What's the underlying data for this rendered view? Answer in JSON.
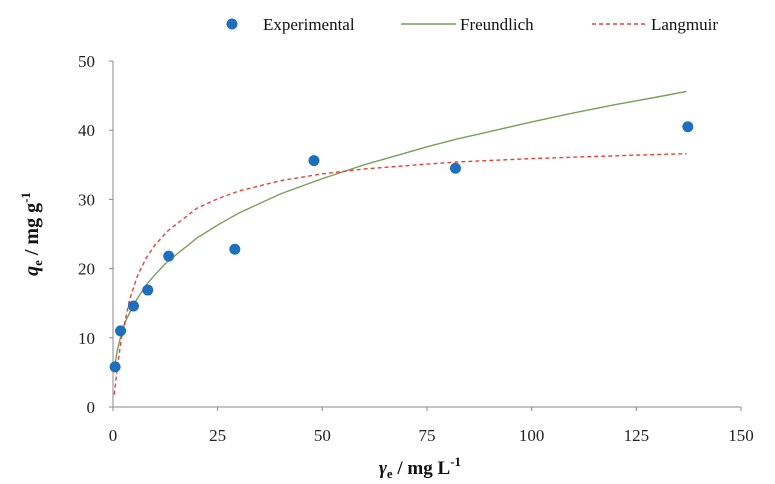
{
  "chart_data": {
    "type": "scatter",
    "title": "",
    "xlabel": {
      "symbol": "γ",
      "sub": "e",
      "rest": " / mg L",
      "sup": "-1"
    },
    "ylabel": {
      "symbol": "q",
      "sub": "e",
      "rest": " / mg g",
      "sup": "-1"
    },
    "xlim": [
      0,
      150
    ],
    "ylim": [
      0,
      50
    ],
    "xticks": [
      "0",
      "25",
      "50",
      "75",
      "100",
      "125",
      "150"
    ],
    "yticks": [
      "0",
      "10",
      "20",
      "30",
      "40",
      "50"
    ],
    "grid": false,
    "legend_position": "top",
    "series": [
      {
        "name": "Experimental",
        "kind": "points",
        "color": "#1f6fbf",
        "x": [
          0.5,
          1.8,
          4.9,
          8.3,
          13.3,
          29.1,
          48.0,
          81.8,
          137.3
        ],
        "y": [
          5.8,
          11.0,
          14.6,
          16.9,
          21.8,
          22.8,
          35.6,
          34.5,
          40.5
        ]
      },
      {
        "name": "Freundlich",
        "kind": "line",
        "color": "#77a05a",
        "dash": "",
        "x": [
          0.5,
          1,
          2,
          3,
          5,
          8,
          10,
          13,
          20,
          25,
          30,
          40,
          50,
          60,
          75,
          82,
          90,
          100,
          110,
          120,
          130,
          137
        ],
        "y": [
          6.2,
          8.1,
          10.6,
          12.4,
          14.9,
          17.7,
          19.1,
          21.0,
          24.4,
          26.3,
          28.0,
          30.8,
          33.0,
          35.0,
          37.6,
          38.7,
          39.8,
          41.2,
          42.5,
          43.7,
          44.8,
          45.6
        ]
      },
      {
        "name": "Langmuir",
        "kind": "line",
        "color": "#e8413d",
        "dash": "4,3",
        "x": [
          0.3,
          1,
          2,
          4,
          6,
          8,
          10,
          13,
          20,
          25,
          30,
          40,
          50,
          60,
          75,
          82,
          100,
          125,
          137
        ],
        "y": [
          1.8,
          5.6,
          9.9,
          15.6,
          19.2,
          21.6,
          23.4,
          25.4,
          28.7,
          30.1,
          31.2,
          32.7,
          33.7,
          34.4,
          35.1,
          35.4,
          35.9,
          36.4,
          36.6
        ]
      }
    ]
  }
}
